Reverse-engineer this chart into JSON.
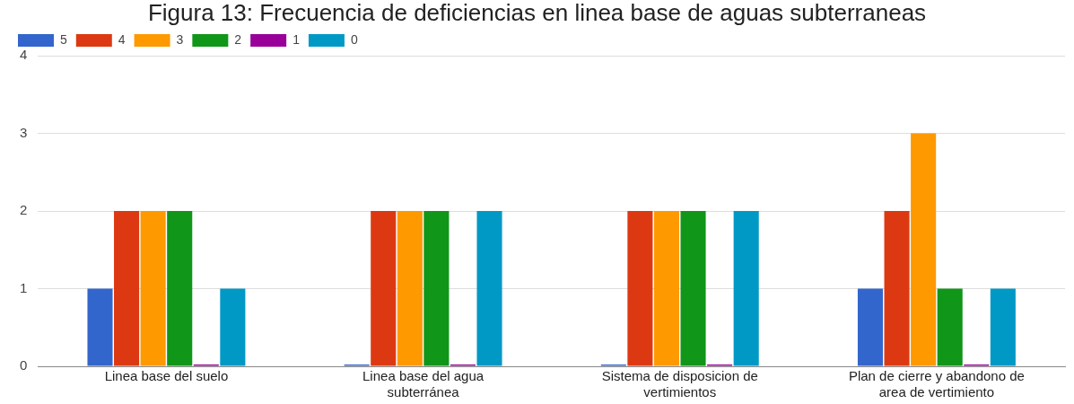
{
  "chart_data": {
    "type": "bar",
    "title": "Figura 13: Frecuencia de deficiencias en linea base de aguas subterraneas",
    "categories": [
      "Linea base del suelo",
      "Linea base del agua subterránea",
      "Sistema de disposicion de vertimientos",
      "Plan de cierre y abandono de area de vertimiento"
    ],
    "series": [
      {
        "name": "5",
        "color": "#3366cc",
        "values": [
          1,
          0,
          0,
          1
        ]
      },
      {
        "name": "4",
        "color": "#dc3912",
        "values": [
          2,
          2,
          2,
          2
        ]
      },
      {
        "name": "3",
        "color": "#ff9900",
        "values": [
          2,
          2,
          2,
          3
        ]
      },
      {
        "name": "2",
        "color": "#109618",
        "values": [
          2,
          2,
          2,
          1
        ]
      },
      {
        "name": "1",
        "color": "#990099",
        "values": [
          0,
          0,
          0,
          0
        ]
      },
      {
        "name": "0",
        "color": "#0099c6",
        "values": [
          1,
          2,
          2,
          1
        ]
      }
    ],
    "ylim": [
      0,
      4
    ],
    "yticks": [
      0,
      1,
      2,
      3,
      4
    ],
    "grid": "y",
    "legend": "top left"
  }
}
